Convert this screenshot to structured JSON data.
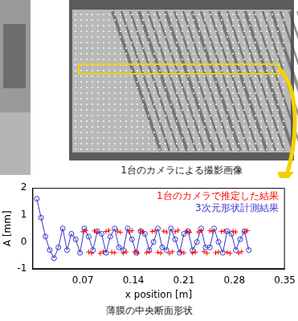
{
  "image": {
    "caption": "1台のカメラによる撮影画像"
  },
  "chart_data": {
    "type": "scatter",
    "title": "薄膜の中央断面形状",
    "x_label": "x position [m]",
    "y_label": "A [mm]",
    "xlim": [
      0,
      0.35
    ],
    "xticks": [
      0.07,
      0.14,
      0.21,
      0.28,
      0.35
    ],
    "ylim": [
      -1,
      2
    ],
    "yticks": [
      -1,
      0,
      1,
      2
    ],
    "grid": false,
    "legend": "upper right",
    "series": [
      {
        "name": "1台のカメラで推定した結果",
        "color": "#ff0000",
        "marker": "cross",
        "line_style": "none",
        "x": [
          0.07,
          0.074,
          0.078,
          0.082,
          0.086,
          0.09,
          0.094,
          0.098,
          0.102,
          0.106,
          0.11,
          0.114,
          0.118,
          0.122,
          0.126,
          0.13,
          0.134,
          0.138,
          0.142,
          0.146,
          0.15,
          0.154,
          0.158,
          0.162,
          0.166,
          0.17,
          0.174,
          0.178,
          0.182,
          0.186,
          0.19,
          0.194,
          0.198,
          0.202,
          0.206,
          0.21,
          0.214,
          0.218,
          0.222,
          0.226,
          0.23,
          0.234,
          0.238,
          0.242,
          0.246,
          0.25,
          0.254,
          0.258,
          0.262,
          0.266,
          0.27,
          0.274,
          0.278,
          0.282,
          0.286,
          0.29,
          0.294,
          0.298
        ],
        "values": [
          0.38,
          0.42,
          -0.37,
          -0.41,
          0.41,
          0.37,
          -0.42,
          -0.36,
          0.39,
          0.43,
          -0.38,
          -0.4,
          0.4,
          0.36,
          -0.41,
          -0.37,
          0.37,
          0.42,
          -0.36,
          -0.42,
          0.42,
          0.38,
          -0.4,
          -0.37,
          0.39,
          0.41,
          -0.38,
          -0.41,
          0.4,
          0.37,
          -0.42,
          -0.36,
          0.38,
          0.43,
          -0.37,
          -0.4,
          0.41,
          0.36,
          -0.41,
          -0.38,
          0.37,
          0.42,
          -0.36,
          -0.41,
          0.42,
          0.38,
          -0.4,
          -0.37,
          0.39,
          0.41,
          -0.38,
          -0.42,
          0.4,
          0.37,
          -0.41,
          -0.36,
          0.38,
          0.42
        ]
      },
      {
        "name": "3次元形状計測結果",
        "color": "#3333cc",
        "marker": "circle",
        "line_style": "solid",
        "x": [
          0.006,
          0.012,
          0.018,
          0.024,
          0.03,
          0.036,
          0.042,
          0.048,
          0.054,
          0.06,
          0.066,
          0.072,
          0.078,
          0.084,
          0.09,
          0.096,
          0.102,
          0.108,
          0.114,
          0.12,
          0.126,
          0.132,
          0.138,
          0.144,
          0.15,
          0.156,
          0.162,
          0.168,
          0.174,
          0.18,
          0.186,
          0.192,
          0.198,
          0.204,
          0.21,
          0.216,
          0.222,
          0.228,
          0.234,
          0.24,
          0.246,
          0.252,
          0.258,
          0.264,
          0.27,
          0.276,
          0.282,
          0.288,
          0.294,
          0.3
        ],
        "values": [
          1.6,
          0.9,
          0.2,
          -0.3,
          -0.6,
          -0.2,
          0.5,
          -0.3,
          0.3,
          0.1,
          -0.4,
          0.5,
          0.2,
          -0.3,
          0.4,
          0.3,
          -0.4,
          0.2,
          0.5,
          -0.2,
          -0.3,
          0.5,
          0.1,
          -0.4,
          0.4,
          0.3,
          -0.3,
          0.0,
          0.5,
          -0.2,
          -0.3,
          0.5,
          0.1,
          -0.4,
          0.3,
          0.4,
          -0.3,
          0.0,
          0.5,
          -0.2,
          -0.2,
          0.5,
          0.0,
          -0.4,
          0.4,
          0.3,
          -0.3,
          0.1,
          0.4,
          -0.3
        ]
      }
    ]
  }
}
